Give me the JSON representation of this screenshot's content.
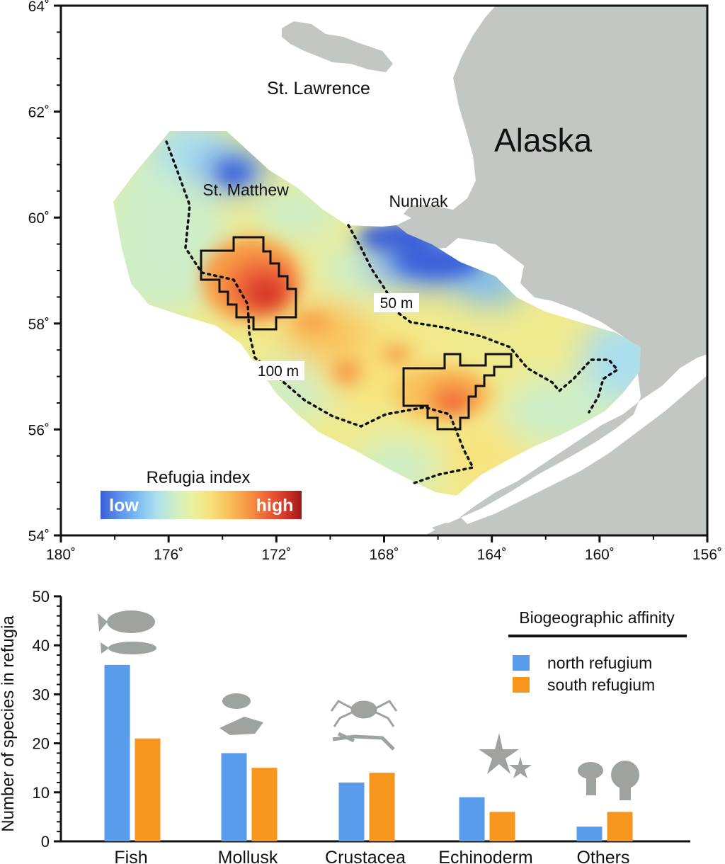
{
  "chart_data": [
    {
      "type": "heatmap",
      "subtype": "map",
      "x_ticks": [
        "180˚",
        "176˚",
        "172˚",
        "168˚",
        "164˚",
        "160˚",
        "156˚"
      ],
      "y_ticks": [
        "64˚",
        "62˚",
        "60˚",
        "58˚",
        "56˚",
        "54˚"
      ],
      "xlim": [
        180,
        156
      ],
      "ylim": [
        54,
        64
      ],
      "place_labels": {
        "st_lawrence": "St. Lawrence",
        "alaska": "Alaska",
        "st_matthew": "St. Matthew",
        "nunivak": "Nunivak"
      },
      "depth_labels": {
        "d50": "50 m",
        "d100": "100 m"
      },
      "legend": {
        "title": "Refugia index",
        "low": "low",
        "high": "high",
        "colors": [
          "#3a5fd9",
          "#5a8fe8",
          "#7bbbf0",
          "#a9def0",
          "#cdeec8",
          "#e8f2a0",
          "#f7e27c",
          "#f9c15a",
          "#f79a45",
          "#f0683a",
          "#d93b2a",
          "#a01818"
        ]
      },
      "colors": {
        "land": "#c2c7c4",
        "refugia_outline": "#111111"
      }
    },
    {
      "type": "bar",
      "ylabel": "Number of species in refugia",
      "ylim": [
        0,
        50
      ],
      "y_ticks": [
        0,
        10,
        20,
        30,
        40,
        50
      ],
      "categories": [
        "Fish",
        "Mollusk",
        "Crustacea",
        "Echinoderm",
        "Others"
      ],
      "legend_title": "Biogeographic affinity",
      "series": [
        {
          "name": "north refugium",
          "color": "#5a9cec",
          "values": [
            36,
            18,
            12,
            9,
            3
          ]
        },
        {
          "name": "south refugium",
          "color": "#f7961e",
          "values": [
            21,
            15,
            14,
            6,
            6
          ]
        }
      ],
      "icon_names": [
        "fish-icon",
        "shell-icon",
        "crab-icon",
        "starfish-icon",
        "anemone-icon"
      ]
    }
  ]
}
